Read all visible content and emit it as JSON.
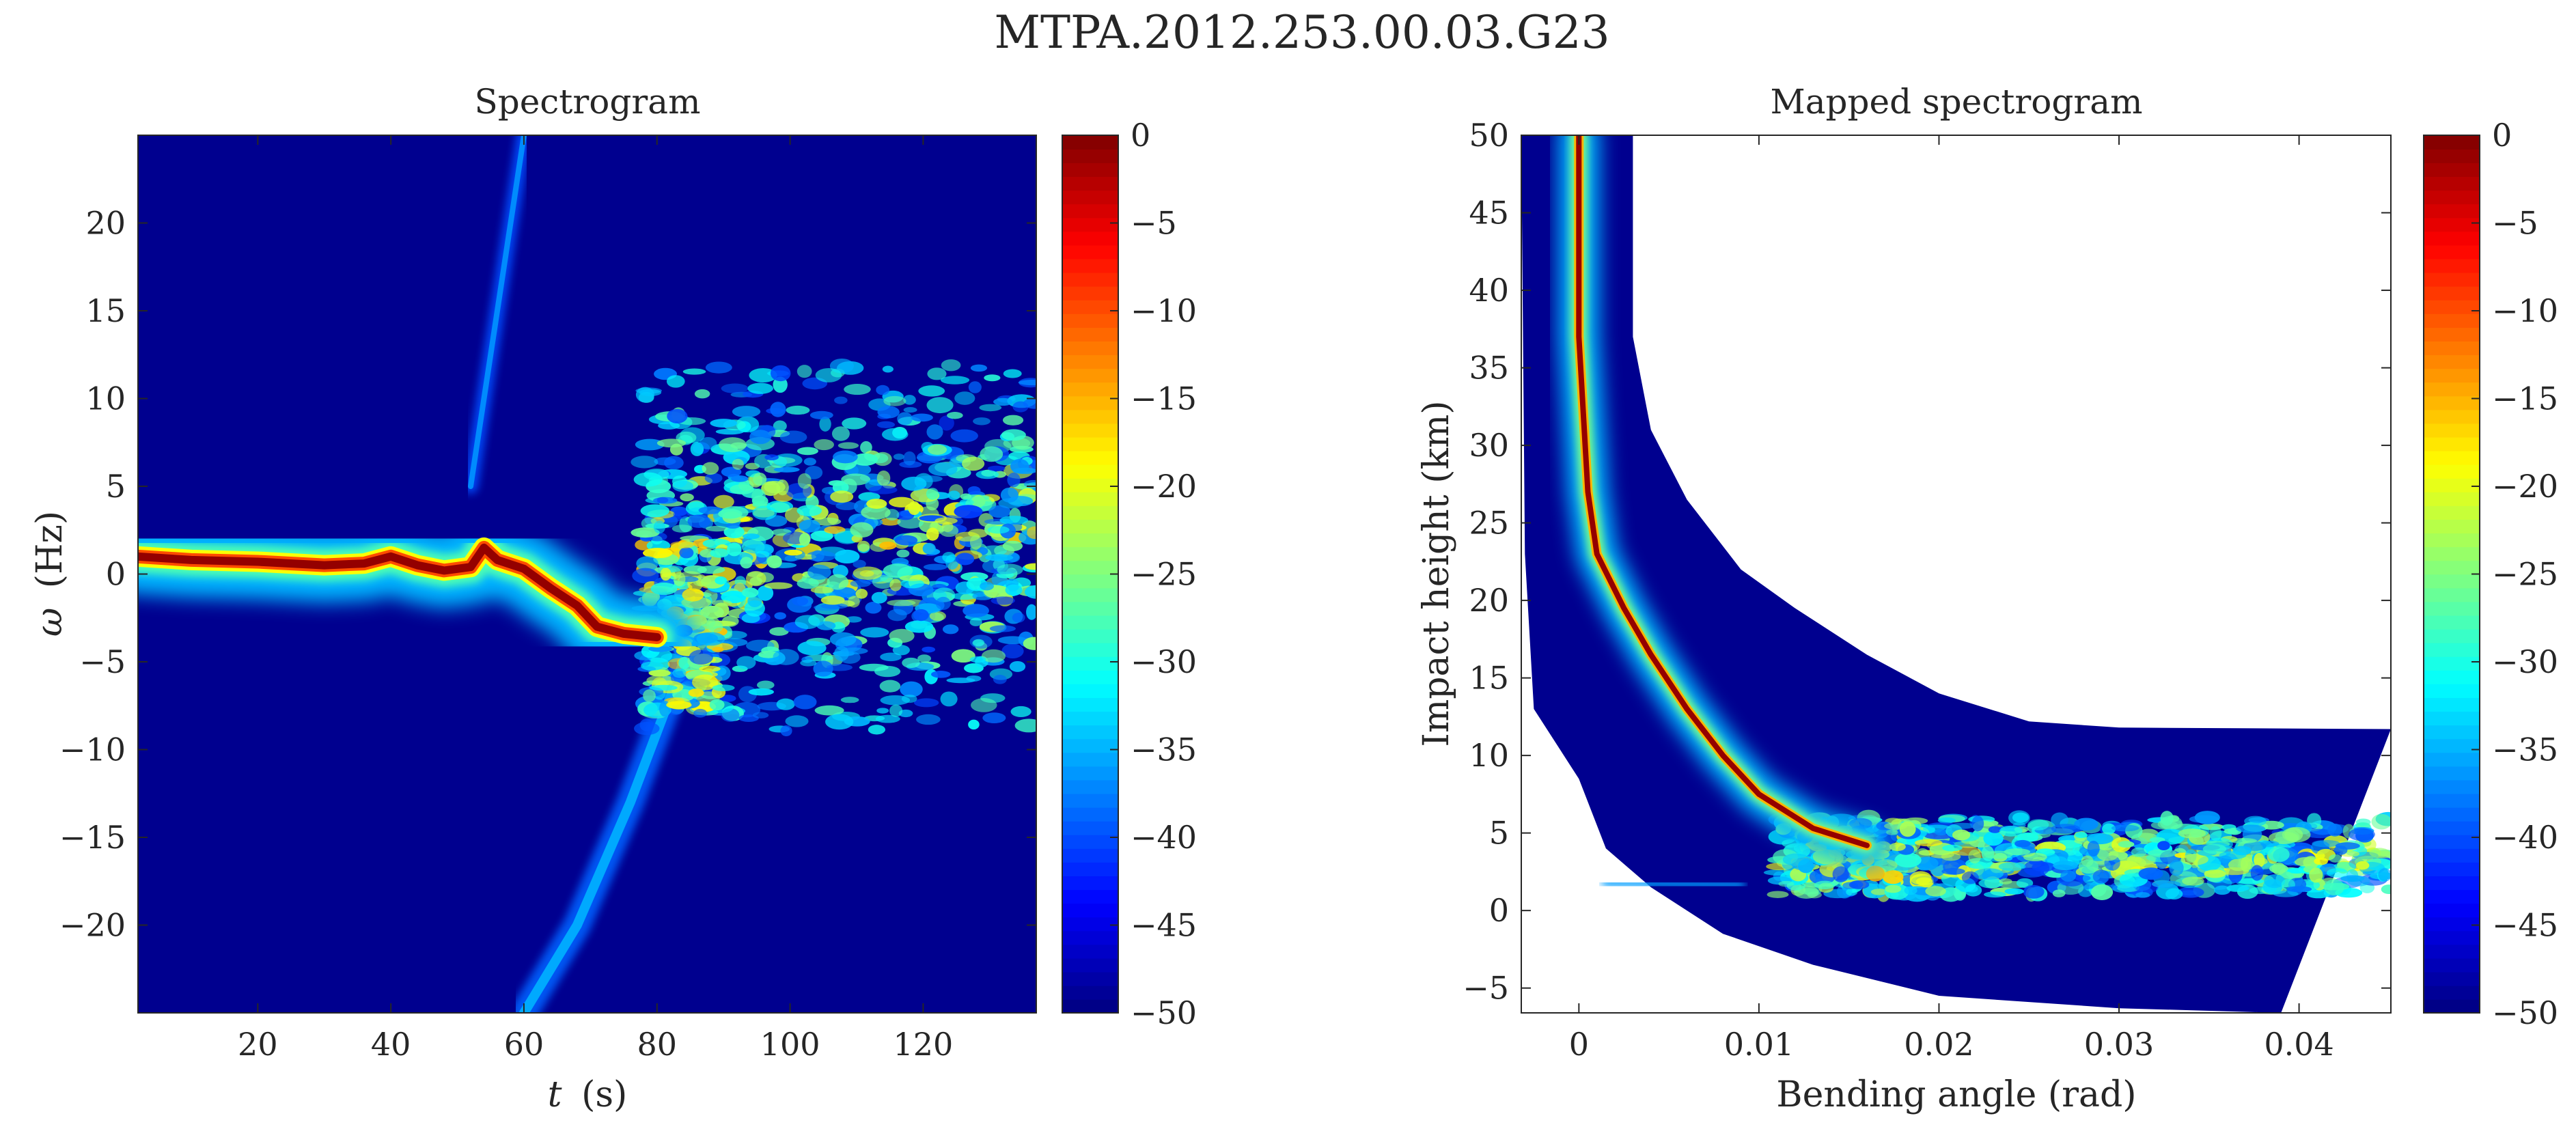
{
  "figure_title": "MTPA.2012.253.00.03.G23",
  "chart_data": [
    {
      "type": "heatmap",
      "title": "Spectrogram",
      "xlabel_var": "t",
      "xlabel_unit": "(s)",
      "ylabel_var": "ω",
      "ylabel_unit": "(Hz)",
      "xlim": [
        2,
        137
      ],
      "ylim": [
        -25,
        25
      ],
      "xticks": [
        20,
        40,
        60,
        80,
        100,
        120
      ],
      "yticks": [
        -20,
        -15,
        -10,
        -5,
        0,
        5,
        10,
        15,
        20
      ],
      "colormap": "jet",
      "clim": [
        -50,
        0
      ],
      "colorbar_ticks": [
        0,
        -5,
        -10,
        -15,
        -20,
        -25,
        -30,
        -35,
        -40,
        -45,
        -50
      ],
      "features": {
        "main_ridge_level_db": 0,
        "main_ridge": [
          [
            2,
            1.0
          ],
          [
            10,
            0.8
          ],
          [
            20,
            0.7
          ],
          [
            30,
            0.5
          ],
          [
            36,
            0.6
          ],
          [
            40,
            1.0
          ],
          [
            44,
            0.5
          ],
          [
            48,
            0.2
          ],
          [
            52,
            0.4
          ],
          [
            54,
            1.5
          ],
          [
            56,
            0.8
          ],
          [
            60,
            0.3
          ],
          [
            64,
            -0.8
          ],
          [
            68,
            -1.8
          ],
          [
            71,
            -3.0
          ],
          [
            75,
            -3.4
          ],
          [
            80,
            -3.6
          ]
        ],
        "aliased_ridge_up": [
          [
            52,
            5
          ],
          [
            56,
            15
          ],
          [
            60,
            25
          ]
        ],
        "aliased_ridge_down": [
          [
            60,
            -25
          ],
          [
            68,
            -20
          ],
          [
            76,
            -13
          ],
          [
            81,
            -8
          ],
          [
            84,
            -5
          ]
        ],
        "noise_band_t": [
          78,
          137
        ],
        "noise_band_omega": [
          -9,
          12
        ]
      }
    },
    {
      "type": "heatmap",
      "title": "Mapped spectrogram",
      "xlabel": "Bending angle (rad)",
      "ylabel": "Impact height (km)",
      "xlim": [
        -0.0032,
        0.0451
      ],
      "ylim": [
        -6.6,
        50
      ],
      "xticks": [
        0,
        0.01,
        0.02,
        0.03,
        0.04
      ],
      "xtick_labels": [
        "0",
        "0.01",
        "0.02",
        "0.03",
        "0.04"
      ],
      "yticks": [
        -5,
        0,
        5,
        10,
        15,
        20,
        25,
        30,
        35,
        40,
        45,
        50
      ],
      "colormap": "jet",
      "clim": [
        -50,
        0
      ],
      "colorbar_ticks": [
        0,
        -5,
        -10,
        -15,
        -20,
        -25,
        -30,
        -35,
        -40,
        -45,
        -50
      ],
      "features": {
        "upper_boundary": [
          [
            0.003,
            50
          ],
          [
            0.003,
            37
          ],
          [
            0.004,
            31
          ],
          [
            0.006,
            26.5
          ],
          [
            0.009,
            22
          ],
          [
            0.012,
            19.5
          ],
          [
            0.016,
            16.5
          ],
          [
            0.02,
            14
          ],
          [
            0.025,
            12.2
          ],
          [
            0.03,
            11.8
          ],
          [
            0.045,
            11.7
          ]
        ],
        "lower_boundary": [
          [
            -0.003,
            23
          ],
          [
            -0.0025,
            13
          ],
          [
            0,
            8.5
          ],
          [
            0.0015,
            4
          ],
          [
            0.004,
            1.5
          ],
          [
            0.008,
            -1.5
          ],
          [
            0.013,
            -3.5
          ],
          [
            0.02,
            -5.5
          ],
          [
            0.03,
            -6.3
          ],
          [
            0.039,
            -6.6
          ],
          [
            0.0451,
            11.7
          ]
        ],
        "main_curve": [
          [
            0,
            50
          ],
          [
            0,
            37
          ],
          [
            0.0005,
            27
          ],
          [
            0.001,
            23
          ],
          [
            0.0025,
            19.5
          ],
          [
            0.004,
            16.5
          ],
          [
            0.006,
            13
          ],
          [
            0.008,
            10
          ],
          [
            0.01,
            7.5
          ],
          [
            0.013,
            5.3
          ],
          [
            0.016,
            4.2
          ]
        ],
        "noise_band_x": [
          0.011,
          0.045
        ],
        "noise_band_height": [
          1,
          6
        ]
      }
    }
  ]
}
